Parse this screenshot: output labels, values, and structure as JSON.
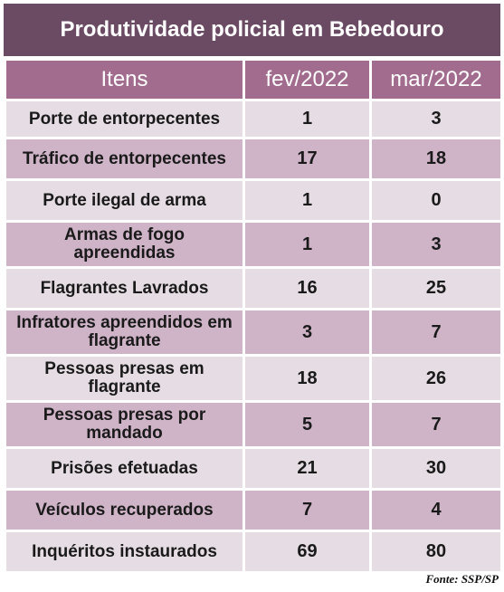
{
  "title": "Produtividade policial em Bebedouro",
  "headers": {
    "item": "Itens",
    "feb": "fev/2022",
    "mar": "mar/2022"
  },
  "rows": [
    {
      "label": "Porte de entorpecentes",
      "feb": "1",
      "mar": "3"
    },
    {
      "label": "Tráfico de entorpecentes",
      "feb": "17",
      "mar": "18"
    },
    {
      "label": "Porte ilegal de arma",
      "feb": "1",
      "mar": "0"
    },
    {
      "label": "Armas de fogo apreendidas",
      "feb": "1",
      "mar": "3"
    },
    {
      "label": "Flagrantes Lavrados",
      "feb": "16",
      "mar": "25"
    },
    {
      "label": "Infratores apreendidos em flagrante",
      "feb": "3",
      "mar": "7"
    },
    {
      "label": "Pessoas presas em flagrante",
      "feb": "18",
      "mar": "26"
    },
    {
      "label": "Pessoas presas por mandado",
      "feb": "5",
      "mar": "7"
    },
    {
      "label": "Prisões efetuadas",
      "feb": "21",
      "mar": "30"
    },
    {
      "label": "Veículos recuperados",
      "feb": "7",
      "mar": "4"
    },
    {
      "label": "Inquéritos instaurados",
      "feb": "69",
      "mar": "80"
    }
  ],
  "source": "Fonte: SSP/SP",
  "colors": {
    "title_bg": "#6b4a63",
    "header_bg": "#a26c8e",
    "row_light": "#e6dde4",
    "row_dark": "#cfb4c8"
  }
}
